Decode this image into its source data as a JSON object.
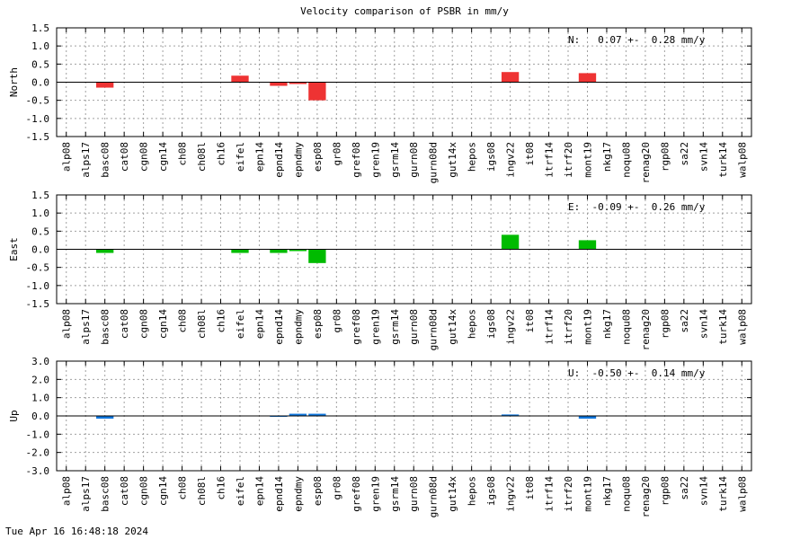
{
  "title": "Velocity comparison of PSBR in mm/y",
  "timestamp": "Tue Apr 16 16:48:18 2024",
  "chart_data": [
    {
      "type": "bar",
      "panel": "north",
      "ylabel": "North",
      "ylim": [
        -1.5,
        1.5
      ],
      "yticks": [
        "1.5",
        "1.0",
        "0.5",
        "0.0",
        "-0.5",
        "-1.0",
        "-1.5"
      ],
      "grid": true,
      "color": "#ee3333",
      "summary": "N:   0.07 +-  0.28 mm/y",
      "categories": [
        "alp08",
        "alps17",
        "basc08",
        "cat08",
        "cgn08",
        "cgn14",
        "ch08",
        "ch08l",
        "ch16",
        "eifel",
        "epn14",
        "epnd14",
        "epndmy",
        "esp08",
        "gr08",
        "gref08",
        "gren19",
        "gsrm14",
        "gurn08",
        "gurn08d",
        "gut14x",
        "hepos",
        "igs08",
        "ingv22",
        "it08",
        "itrf14",
        "itrf20",
        "mont19",
        "nkg17",
        "noqu08",
        "renag20",
        "rgp08",
        "sa22",
        "svn14",
        "turk14",
        "walp08"
      ],
      "values": [
        0,
        0,
        -0.15,
        0,
        0,
        0,
        0,
        0,
        0,
        0.18,
        0,
        -0.1,
        -0.05,
        -0.5,
        0,
        0,
        0,
        0,
        0,
        0,
        0,
        0,
        0,
        0.28,
        0,
        0,
        0,
        0.25,
        0,
        0,
        0,
        0,
        0,
        0,
        0,
        0
      ]
    },
    {
      "type": "bar",
      "panel": "east",
      "ylabel": "East",
      "ylim": [
        -1.5,
        1.5
      ],
      "yticks": [
        "1.5",
        "1.0",
        "0.5",
        "0.0",
        "-0.5",
        "-1.0",
        "-1.5"
      ],
      "grid": true,
      "color": "#00bb00",
      "summary": "E:  -0.09 +-  0.26 mm/y",
      "categories": [
        "alp08",
        "alps17",
        "basc08",
        "cat08",
        "cgn08",
        "cgn14",
        "ch08",
        "ch08l",
        "ch16",
        "eifel",
        "epn14",
        "epnd14",
        "epndmy",
        "esp08",
        "gr08",
        "gref08",
        "gren19",
        "gsrm14",
        "gurn08",
        "gurn08d",
        "gut14x",
        "hepos",
        "igs08",
        "ingv22",
        "it08",
        "itrf14",
        "itrf20",
        "mont19",
        "nkg17",
        "noqu08",
        "renag20",
        "rgp08",
        "sa22",
        "svn14",
        "turk14",
        "walp08"
      ],
      "values": [
        0,
        0,
        -0.1,
        0,
        0,
        0,
        0,
        0,
        0,
        -0.1,
        0,
        -0.1,
        -0.05,
        -0.38,
        0,
        0,
        0,
        0,
        0,
        0,
        0,
        0,
        0,
        0.4,
        0,
        0,
        0,
        0.25,
        0,
        0,
        0,
        0,
        0,
        0,
        0,
        0
      ]
    },
    {
      "type": "bar",
      "panel": "up",
      "ylabel": "Up",
      "ylim": [
        -3.0,
        3.0
      ],
      "yticks": [
        "3.0",
        "2.0",
        "1.0",
        "0.0",
        "-1.0",
        "-2.0",
        "-3.0"
      ],
      "grid": true,
      "color": "#1177dd",
      "summary": "U:  -0.50 +-  0.14 mm/y",
      "categories": [
        "alp08",
        "alps17",
        "basc08",
        "cat08",
        "cgn08",
        "cgn14",
        "ch08",
        "ch08l",
        "ch16",
        "eifel",
        "epn14",
        "epnd14",
        "epndmy",
        "esp08",
        "gr08",
        "gref08",
        "gren19",
        "gsrm14",
        "gurn08",
        "gurn08d",
        "gut14x",
        "hepos",
        "igs08",
        "ingv22",
        "it08",
        "itrf14",
        "itrf20",
        "mont19",
        "nkg17",
        "noqu08",
        "renag20",
        "rgp08",
        "sa22",
        "svn14",
        "turk14",
        "walp08"
      ],
      "values": [
        0,
        0,
        -0.15,
        0,
        0,
        0,
        0,
        0,
        0,
        0,
        0,
        -0.05,
        0.12,
        0.12,
        0,
        0,
        0,
        0,
        0,
        0,
        0,
        0,
        0,
        0.08,
        0,
        0,
        0,
        -0.15,
        0,
        0,
        0,
        0,
        0,
        0,
        0,
        0
      ]
    }
  ]
}
